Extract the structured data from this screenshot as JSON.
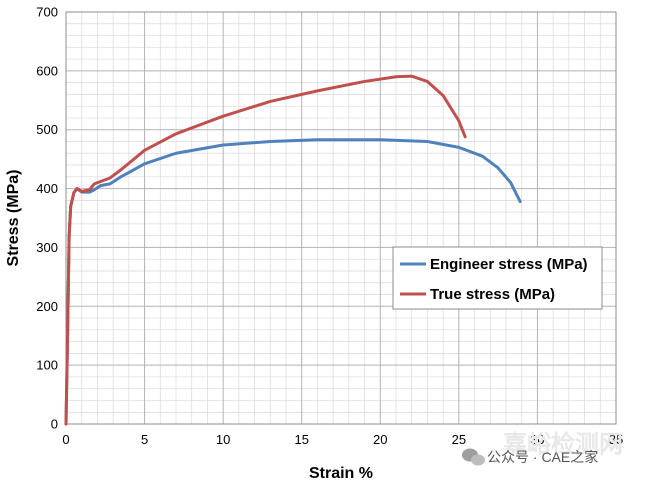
{
  "chart_data": {
    "type": "line",
    "title": "",
    "xlabel": "Strain %",
    "ylabel": "Stress (MPa)",
    "xlim": [
      0,
      35
    ],
    "ylim": [
      0,
      700
    ],
    "xticks": [
      0,
      5,
      10,
      15,
      20,
      25,
      30,
      35
    ],
    "yticks": [
      0,
      100,
      200,
      300,
      400,
      500,
      600,
      700
    ],
    "grid": true,
    "legend_position": "right",
    "series": [
      {
        "name": "Engineer stress (MPa)",
        "color": "#4f81bd",
        "points": [
          [
            0,
            0
          ],
          [
            0.1,
            150
          ],
          [
            0.2,
            320
          ],
          [
            0.3,
            370
          ],
          [
            0.5,
            393
          ],
          [
            0.7,
            400
          ],
          [
            1.0,
            394
          ],
          [
            1.5,
            394
          ],
          [
            1.8,
            398
          ],
          [
            2.2,
            405
          ],
          [
            2.8,
            408
          ],
          [
            3.5,
            420
          ],
          [
            5,
            442
          ],
          [
            7,
            460
          ],
          [
            10,
            474
          ],
          [
            13,
            480
          ],
          [
            16,
            483
          ],
          [
            20,
            483
          ],
          [
            23,
            480
          ],
          [
            25,
            470
          ],
          [
            26.5,
            455
          ],
          [
            27.5,
            435
          ],
          [
            28.3,
            410
          ],
          [
            28.9,
            378
          ]
        ]
      },
      {
        "name": "True stress (MPa)",
        "color": "#c0504d",
        "points": [
          [
            0,
            0
          ],
          [
            0.1,
            150
          ],
          [
            0.2,
            320
          ],
          [
            0.3,
            370
          ],
          [
            0.5,
            393
          ],
          [
            0.7,
            400
          ],
          [
            1.0,
            395
          ],
          [
            1.5,
            398
          ],
          [
            1.8,
            408
          ],
          [
            2.2,
            412
          ],
          [
            2.8,
            418
          ],
          [
            3.5,
            432
          ],
          [
            5,
            465
          ],
          [
            7,
            493
          ],
          [
            10,
            523
          ],
          [
            13,
            548
          ],
          [
            16,
            566
          ],
          [
            19,
            582
          ],
          [
            21,
            590
          ],
          [
            22,
            591
          ],
          [
            23,
            582
          ],
          [
            24,
            558
          ],
          [
            25,
            515
          ],
          [
            25.4,
            488
          ]
        ]
      }
    ]
  },
  "watermark": {
    "wechat_label": "公众号 · CAE之家",
    "overlay_text": "嘉峪检测网"
  }
}
